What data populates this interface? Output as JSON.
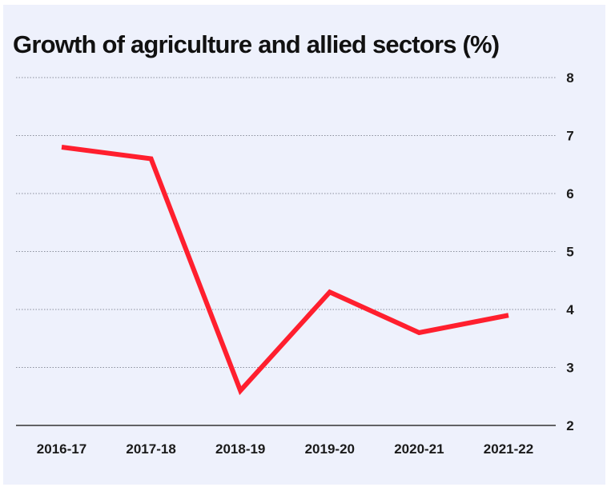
{
  "chart_data": {
    "type": "line",
    "title": "Growth of agriculture and allied sectors (%)",
    "xlabel": "",
    "ylabel": "",
    "categories": [
      "2016-17",
      "2017-18",
      "2018-19",
      "2019-20",
      "2020-21",
      "2021-22"
    ],
    "series": [
      {
        "values": [
          6.8,
          6.6,
          2.6,
          4.3,
          3.6,
          3.9
        ],
        "color": "#ff1f2e"
      }
    ],
    "ylim": [
      2,
      8
    ],
    "yticks": [
      2,
      3,
      4,
      5,
      6,
      7,
      8
    ],
    "y_axis_side": "right",
    "grid": "dotted horizontal",
    "legend": "none",
    "colors": {
      "background": "#eef1fc",
      "line": "#ff1f2e",
      "grid": "#8a8f9c",
      "axis": "#333333",
      "text": "#111111"
    }
  }
}
